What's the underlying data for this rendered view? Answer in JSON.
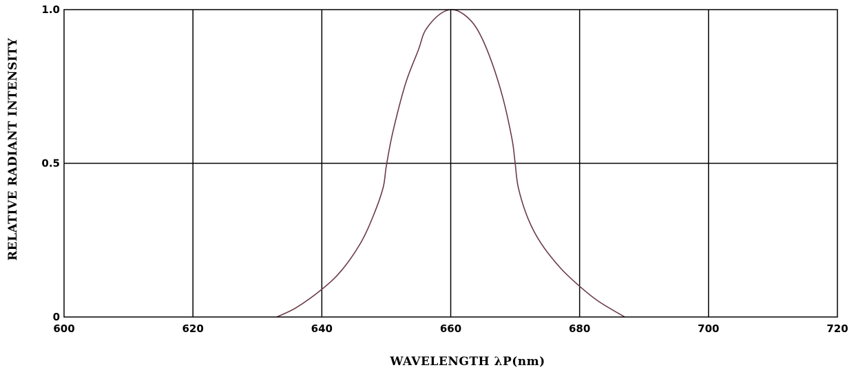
{
  "chart_data": {
    "type": "line",
    "title": "",
    "xlabel": "WAVELENGTH  λP(nm)",
    "ylabel": "RELATIVE  RADIANT  INTENSITY",
    "xlim": [
      600,
      720
    ],
    "ylim": [
      0,
      1.0
    ],
    "x_ticks": [
      600,
      620,
      640,
      660,
      680,
      700,
      720
    ],
    "x_tick_labels": [
      "600",
      "620",
      "640",
      "660",
      "680",
      "700",
      "720"
    ],
    "y_ticks": [
      0,
      0.5,
      1.0
    ],
    "y_tick_labels": [
      "0",
      "0.5",
      "1.0"
    ],
    "grid": true,
    "line_color": "#6b3a46",
    "series": [
      {
        "x": [
          633,
          636,
          640,
          643,
          646,
          648,
          649.5,
          650,
          651,
          653,
          655,
          656,
          658,
          660,
          662,
          664,
          666,
          668,
          669.5,
          670,
          670.5,
          672,
          674,
          677,
          680,
          683,
          687
        ],
        "y": [
          0,
          0.03,
          0.09,
          0.15,
          0.24,
          0.33,
          0.42,
          0.49,
          0.6,
          0.76,
          0.87,
          0.93,
          0.98,
          1.0,
          0.985,
          0.94,
          0.85,
          0.72,
          0.58,
          0.5,
          0.42,
          0.32,
          0.24,
          0.16,
          0.1,
          0.05,
          0
        ]
      }
    ]
  }
}
